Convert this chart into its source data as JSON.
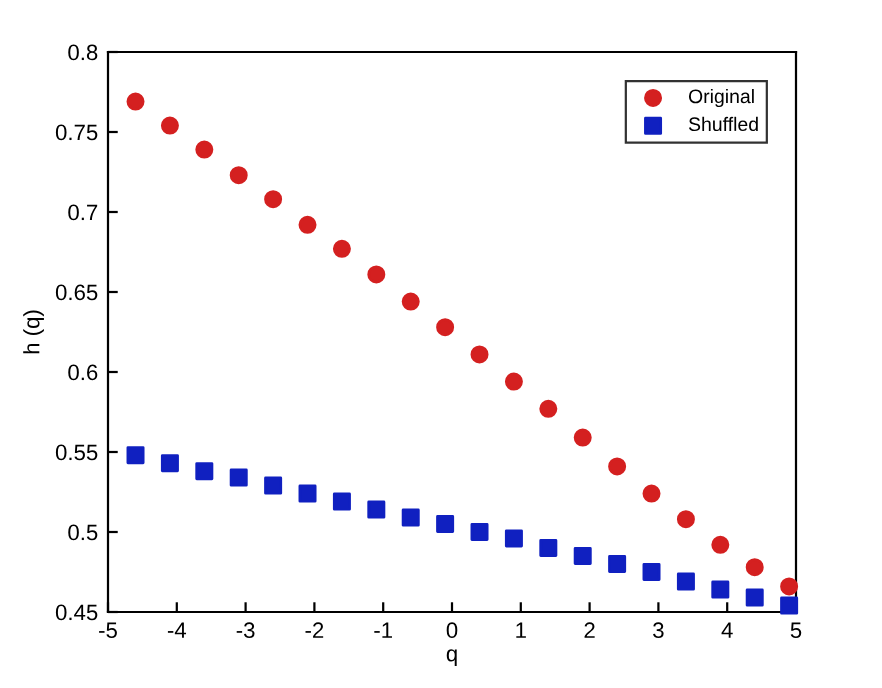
{
  "chart_data": {
    "type": "scatter",
    "xlabel": "q",
    "ylabel": "h (q)",
    "x": [
      -4.6,
      -4.1,
      -3.6,
      -3.1,
      -2.6,
      -2.1,
      -1.6,
      -1.1,
      -0.6,
      -0.1,
      0.4,
      0.9,
      1.4,
      1.9,
      2.4,
      2.9,
      3.4,
      3.9,
      4.4,
      4.9
    ],
    "series": [
      {
        "name": "Original",
        "color": "#d42020",
        "marker": "circle",
        "values": [
          0.769,
          0.754,
          0.739,
          0.723,
          0.708,
          0.692,
          0.677,
          0.661,
          0.644,
          0.628,
          0.611,
          0.594,
          0.577,
          0.559,
          0.541,
          0.524,
          0.508,
          0.492,
          0.478,
          0.466
        ]
      },
      {
        "name": "Shuffled",
        "color": "#1020c0",
        "marker": "square",
        "values": [
          0.548,
          0.543,
          0.538,
          0.534,
          0.529,
          0.524,
          0.519,
          0.514,
          0.509,
          0.505,
          0.5,
          0.496,
          0.49,
          0.485,
          0.48,
          0.475,
          0.469,
          0.464,
          0.459,
          0.454
        ]
      }
    ],
    "xlim": [
      -5,
      5
    ],
    "xticks": [
      -5,
      -4,
      -3,
      -2,
      -1,
      0,
      1,
      2,
      3,
      4,
      5
    ],
    "ylim": [
      0.45,
      0.8
    ],
    "yticks": [
      0.45,
      0.5,
      0.55,
      0.6,
      0.65,
      0.7,
      0.75,
      0.8
    ],
    "grid": false,
    "legend": "top right"
  }
}
